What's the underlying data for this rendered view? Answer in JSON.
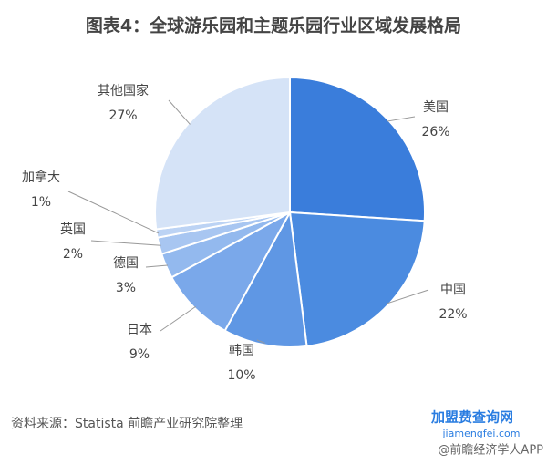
{
  "chart_data": {
    "type": "pie",
    "title": "图表4：全球游乐园和主题乐园行业区域发展格局",
    "categories": [
      "美国",
      "中国",
      "韩国",
      "日本",
      "德国",
      "英国",
      "加拿大",
      "其他国家"
    ],
    "values": [
      26,
      22,
      10,
      9,
      3,
      2,
      1,
      27
    ],
    "value_labels": [
      "26%",
      "22%",
      "10%",
      "9%",
      "3%",
      "2%",
      "1%",
      "27%"
    ],
    "colors": [
      "#3a7ddb",
      "#4b8be0",
      "#5f97e4",
      "#7aa8ea",
      "#93b9ee",
      "#a8c6f1",
      "#bcd3f4",
      "#d5e3f7"
    ],
    "source": "资料来源：Statista 前瞻产业研究院整理",
    "watermark": "@前瞻经济学人APP",
    "badge": "加盟费查询网",
    "badge_url": "jiamengfei.com"
  }
}
